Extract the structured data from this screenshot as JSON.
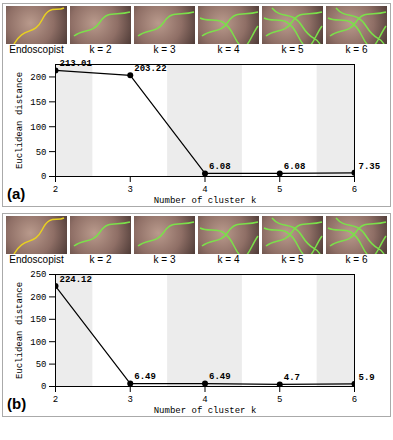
{
  "chart_data": [
    {
      "type": "line",
      "title": "(a)",
      "annotations": [
        "Endoscopist",
        "k = 2",
        "k = 3",
        "k = 4",
        "k = 5",
        "k = 6"
      ],
      "x": [
        2,
        3,
        4,
        5,
        6
      ],
      "values": [
        213.01,
        203.22,
        6.08,
        6.08,
        7.35
      ],
      "x_label": "Number of cluster k",
      "y_label": "Euclidean distance",
      "xlim": [
        2,
        6
      ],
      "xticks": [
        2,
        3,
        4,
        5,
        6
      ],
      "ylim": [
        0,
        225
      ],
      "yticks": [
        0,
        50,
        100,
        150,
        200
      ],
      "color": "#000000",
      "marker": "circle",
      "data_labels": true
    },
    {
      "type": "line",
      "title": "(b)",
      "annotations": [
        "Endoscopist",
        "k = 2",
        "k = 3",
        "k = 4",
        "k = 5",
        "k = 6"
      ],
      "x": [
        2,
        3,
        4,
        5,
        6
      ],
      "values": [
        224.12,
        6.49,
        6.49,
        4.7,
        5.9
      ],
      "x_label": "Number of cluster k",
      "y_label": "Euclidean distance",
      "xlim": [
        2,
        6
      ],
      "xticks": [
        2,
        3,
        4,
        5,
        6
      ],
      "ylim": [
        0,
        250
      ],
      "yticks": [
        0,
        50,
        100,
        150,
        200,
        250
      ],
      "color": "#000000",
      "marker": "circle",
      "data_labels": true
    }
  ]
}
